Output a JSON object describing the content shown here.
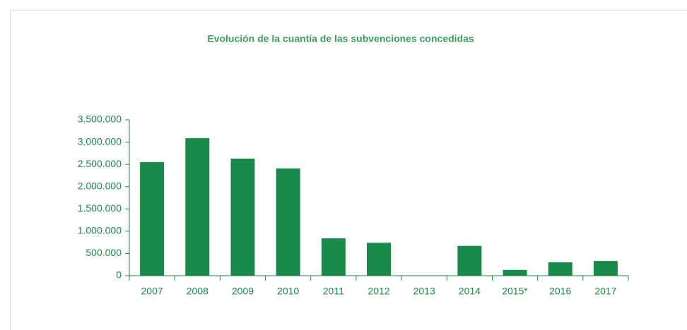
{
  "chart_data": {
    "type": "bar",
    "title": "Evolución de la cuantía de las subvenciones concedidas",
    "categories": [
      "2007",
      "2008",
      "2009",
      "2010",
      "2011",
      "2012",
      "2013",
      "2014",
      "2015*",
      "2016",
      "2017"
    ],
    "values": [
      2550000,
      3090000,
      2630000,
      2410000,
      840000,
      740000,
      0,
      670000,
      130000,
      300000,
      330000
    ],
    "color": "#1a8a4a",
    "ylim": [
      0,
      3500000
    ],
    "yticks": [
      0,
      {
        "value": 500000,
        "label": "500.000"
      },
      {
        "value": 1000000,
        "label": "1.000.000"
      },
      {
        "value": 1500000,
        "label": "1.500.000"
      },
      {
        "value": 2000000,
        "label": "2.000.000"
      },
      {
        "value": 2500000,
        "label": "2.500.000"
      },
      {
        "value": 3000000,
        "label": "3.000.000"
      },
      {
        "value": 3500000,
        "label": "3.500.000"
      }
    ],
    "grid": false
  }
}
